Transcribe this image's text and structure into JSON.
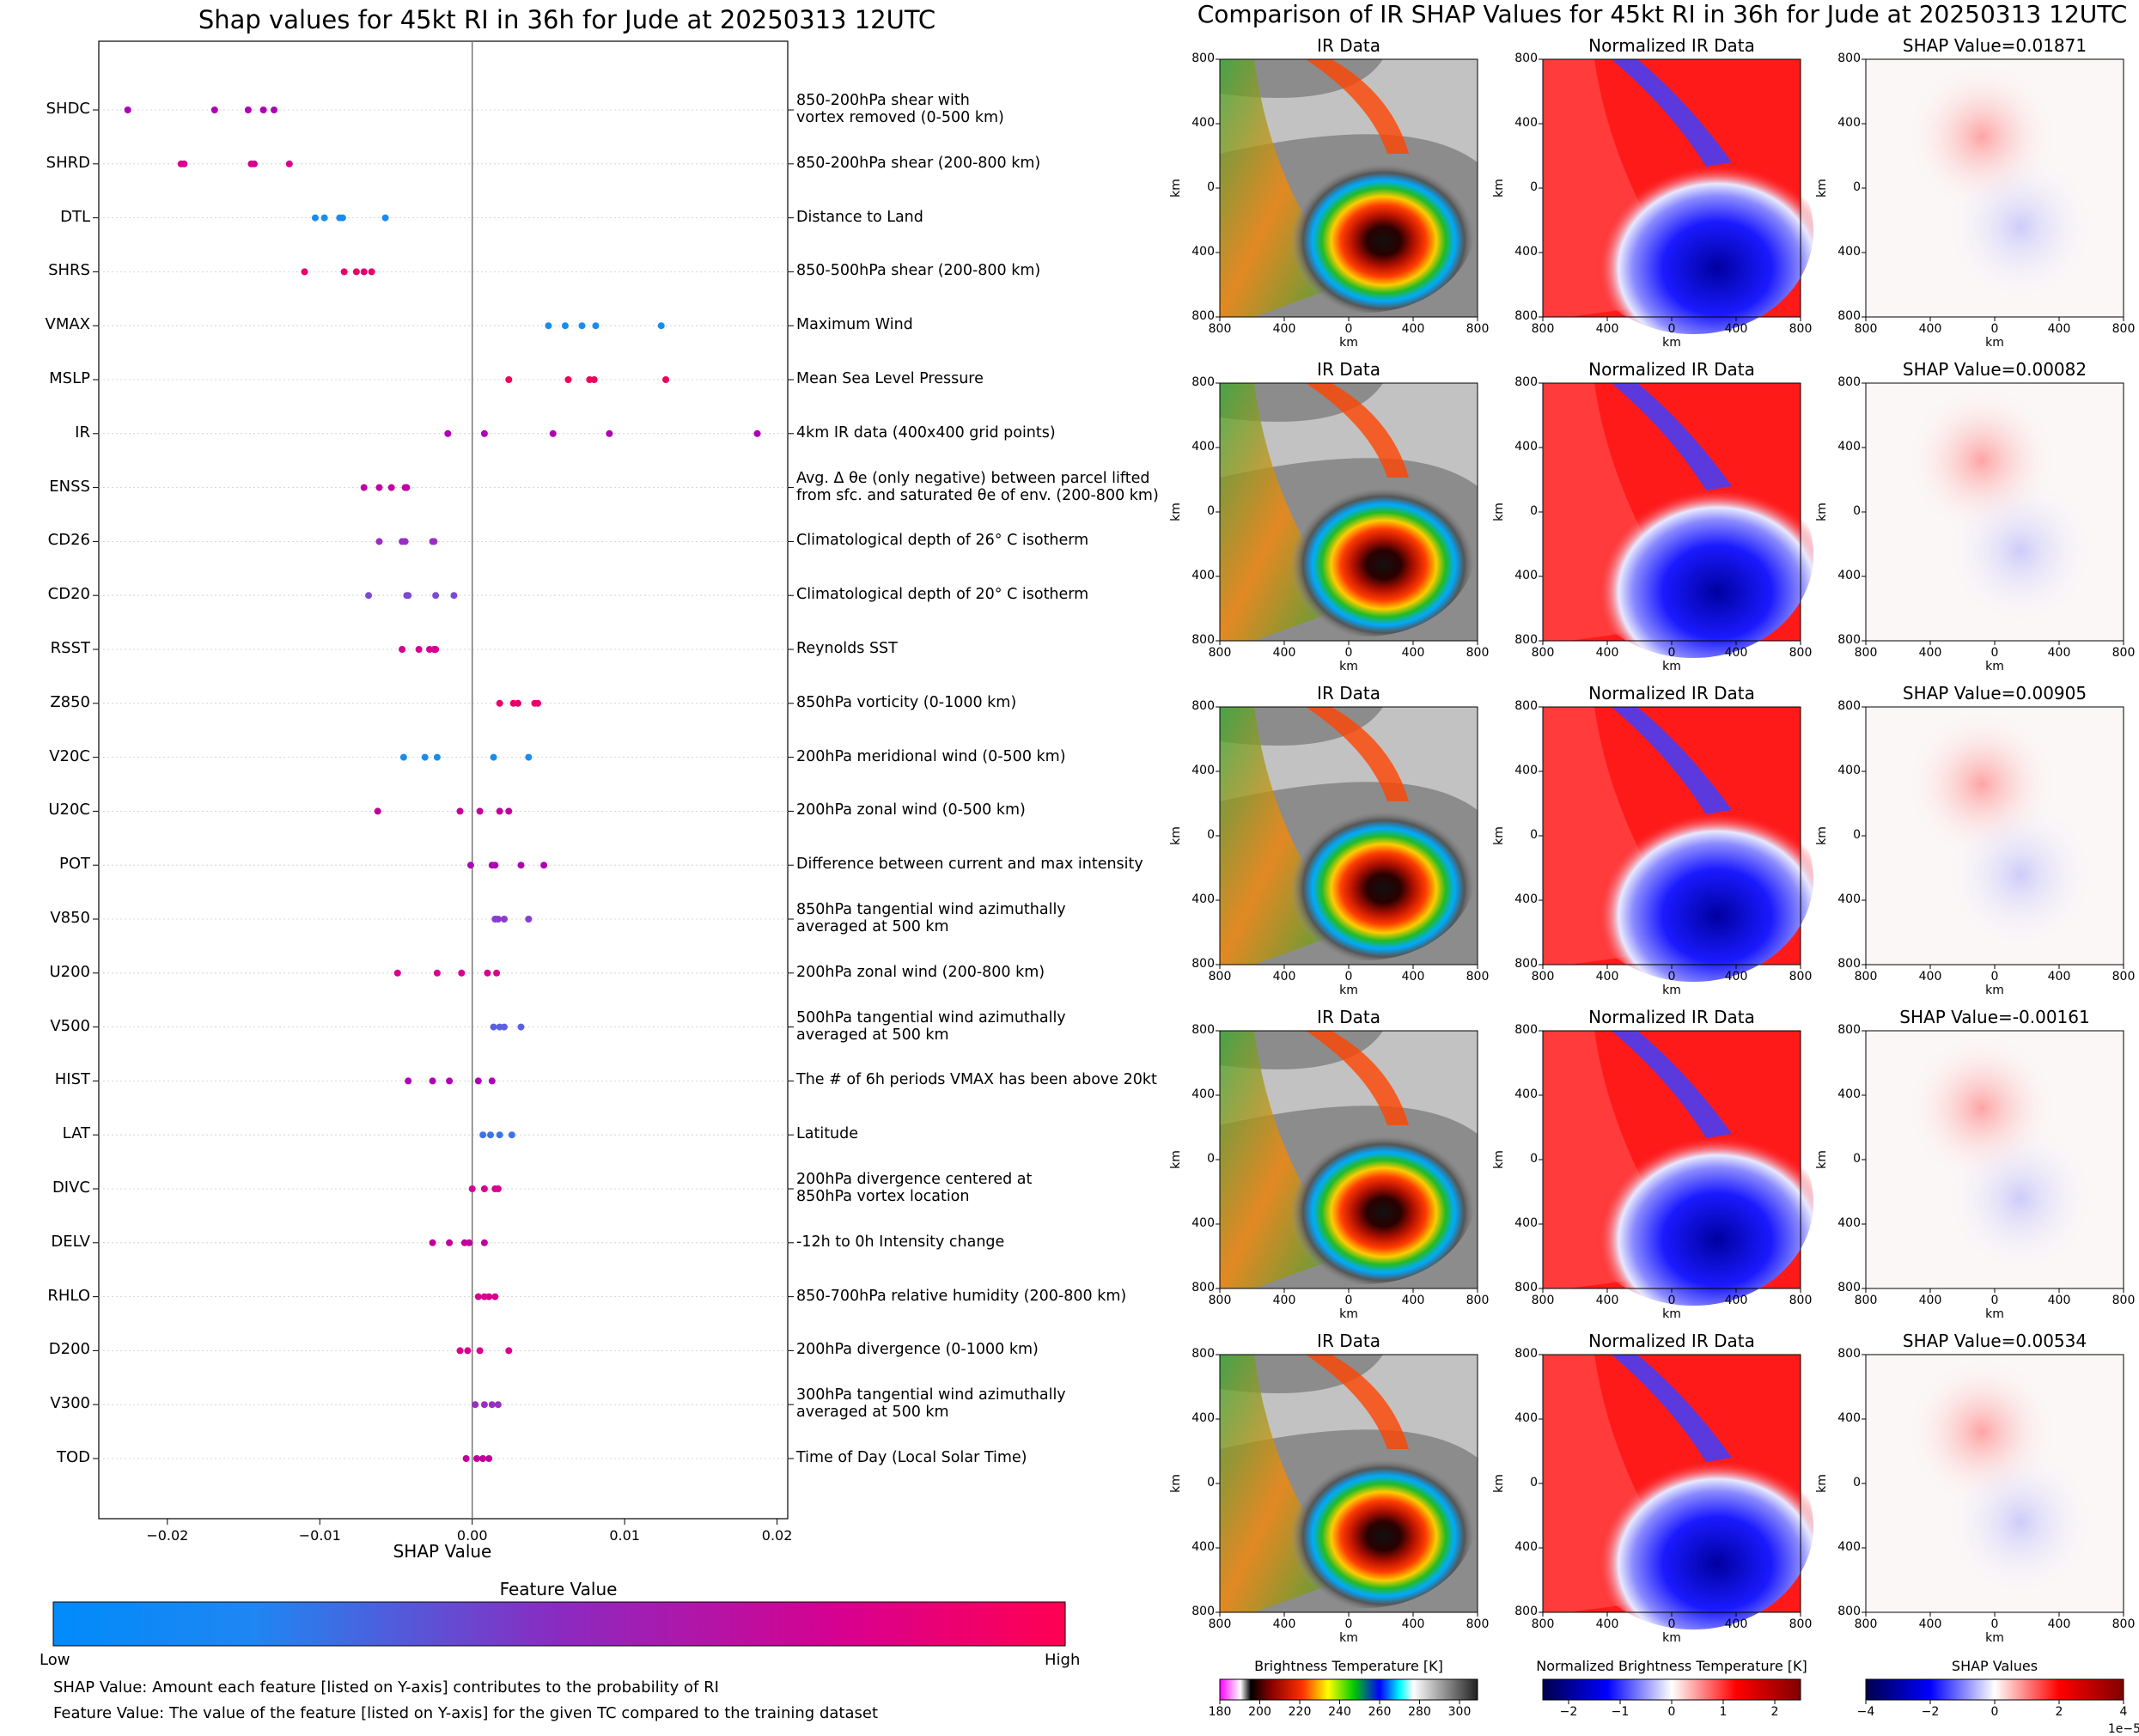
{
  "left_title": "Shap values for 45kt RI in 36h for Jude at 20250313 12UTC",
  "right_title": "Comparison of IR SHAP Values for 45kt RI in 36h for Jude at 20250313 12UTC",
  "chart_data": {
    "type": "scatter",
    "title": "Shap values for 45kt RI in 36h for Jude at 20250313 12UTC",
    "xlabel": "SHAP Value",
    "xlim": [
      -0.0245,
      0.0207
    ],
    "xticks": [
      -0.02,
      -0.01,
      0.0,
      0.01,
      0.02
    ],
    "xtick_labels": [
      "−0.02",
      "−0.01",
      "0.00",
      "0.01",
      "0.02"
    ],
    "features": [
      {
        "name": "SHDC",
        "desc": [
          "850-200hPa shear with",
          "vortex removed (0-500 km)"
        ],
        "values": [
          -0.0226,
          -0.0169,
          -0.0147,
          -0.0137,
          -0.013
        ],
        "color": "#b000b5"
      },
      {
        "name": "SHRD",
        "desc": [
          "850-200hPa shear (200-800 km)"
        ],
        "values": [
          -0.0191,
          -0.0189,
          -0.0145,
          -0.0143,
          -0.012
        ],
        "color": "#d8008f"
      },
      {
        "name": "DTL",
        "desc": [
          "Distance to Land"
        ],
        "values": [
          -0.0103,
          -0.0097,
          -0.0087,
          -0.0085,
          -0.0057
        ],
        "color": "#1a8cf0"
      },
      {
        "name": "SHRS",
        "desc": [
          "850-500hPa shear (200-800 km)"
        ],
        "values": [
          -0.011,
          -0.0084,
          -0.0076,
          -0.0071,
          -0.0066
        ],
        "color": "#e8006c"
      },
      {
        "name": "VMAX",
        "desc": [
          "Maximum Wind"
        ],
        "values": [
          0.005,
          0.0061,
          0.0072,
          0.0081,
          0.0124
        ],
        "color": "#1a8cf0"
      },
      {
        "name": "MSLP",
        "desc": [
          "Mean Sea Level Pressure"
        ],
        "values": [
          0.0024,
          0.0063,
          0.0077,
          0.008,
          0.0127
        ],
        "color": "#f0005a"
      },
      {
        "name": "IR",
        "desc": [
          "4km IR data (400x400 grid points)"
        ],
        "values": [
          -0.0016,
          0.0008,
          0.0053,
          0.009,
          0.0187
        ],
        "color": "#b000b5"
      },
      {
        "name": "ENSS",
        "desc": [
          "Avg. Δ θe (only negative) between parcel lifted",
          "from sfc. and saturated θe of env. (200-800 km)"
        ],
        "values": [
          -0.0071,
          -0.0061,
          -0.0053,
          -0.0044,
          -0.0043
        ],
        "color": "#c000a5"
      },
      {
        "name": "CD26",
        "desc": [
          "Climatological depth of 26° C isotherm"
        ],
        "values": [
          -0.0061,
          -0.0046,
          -0.0044,
          -0.0026,
          -0.0025
        ],
        "color": "#9a2ec0"
      },
      {
        "name": "CD20",
        "desc": [
          "Climatological depth of 20° C isotherm"
        ],
        "values": [
          -0.0068,
          -0.0043,
          -0.0042,
          -0.0024,
          -0.0012
        ],
        "color": "#7a4ad0"
      },
      {
        "name": "RSST",
        "desc": [
          "Reynolds SST"
        ],
        "values": [
          -0.0046,
          -0.0035,
          -0.0028,
          -0.0025,
          -0.0024
        ],
        "color": "#d8008f"
      },
      {
        "name": "Z850",
        "desc": [
          "850hPa vorticity (0-1000 km)"
        ],
        "values": [
          0.0018,
          0.0027,
          0.003,
          0.0041,
          0.0043
        ],
        "color": "#e8006c"
      },
      {
        "name": "V20C",
        "desc": [
          "200hPa meridional wind (0-500 km)"
        ],
        "values": [
          -0.0045,
          -0.0031,
          -0.0023,
          0.0014,
          0.0037
        ],
        "color": "#1a8cf0"
      },
      {
        "name": "U20C",
        "desc": [
          "200hPa zonal wind (0-500 km)"
        ],
        "values": [
          -0.0062,
          -0.0008,
          0.0005,
          0.0018,
          0.0024
        ],
        "color": "#c0009a"
      },
      {
        "name": "POT",
        "desc": [
          "Difference between current and max intensity"
        ],
        "values": [
          -0.0001,
          0.0013,
          0.0015,
          0.0032,
          0.0047
        ],
        "color": "#b000b5"
      },
      {
        "name": "V850",
        "desc": [
          "850hPa tangential wind azimuthally",
          "averaged at 500 km"
        ],
        "values": [
          0.0015,
          0.0017,
          0.0021,
          0.0037
        ],
        "color": "#8a3ccb"
      },
      {
        "name": "U200",
        "desc": [
          "200hPa zonal wind (200-800 km)"
        ],
        "values": [
          -0.0049,
          -0.0023,
          -0.0007,
          0.001,
          0.0016
        ],
        "color": "#d8008f"
      },
      {
        "name": "V500",
        "desc": [
          "500hPa tangential wind azimuthally",
          "averaged at 500 km"
        ],
        "values": [
          0.0014,
          0.0018,
          0.0021,
          0.0032
        ],
        "color": "#5b60e0"
      },
      {
        "name": "HIST",
        "desc": [
          "The # of 6h periods VMAX has been above 20kt"
        ],
        "values": [
          -0.0042,
          -0.0026,
          -0.0015,
          0.0004,
          0.0013
        ],
        "color": "#b000b5"
      },
      {
        "name": "LAT",
        "desc": [
          "Latitude"
        ],
        "values": [
          0.0007,
          0.0012,
          0.0018,
          0.0026
        ],
        "color": "#3a74e8"
      },
      {
        "name": "DIVC",
        "desc": [
          "200hPa divergence centered at",
          "850hPa vortex location"
        ],
        "values": [
          0.0,
          0.0008,
          0.0015,
          0.0017
        ],
        "color": "#d8008f"
      },
      {
        "name": "DELV",
        "desc": [
          "-12h to 0h Intensity change"
        ],
        "values": [
          -0.0026,
          -0.0015,
          -0.0005,
          -0.0002,
          0.0008
        ],
        "color": "#c0009a"
      },
      {
        "name": "RHLO",
        "desc": [
          "850-700hPa relative humidity (200-800 km)"
        ],
        "values": [
          0.0004,
          0.0008,
          0.0011,
          0.0015
        ],
        "color": "#d8008f"
      },
      {
        "name": "D200",
        "desc": [
          "200hPa divergence (0-1000 km)"
        ],
        "values": [
          -0.0008,
          -0.0003,
          0.0005,
          0.0024
        ],
        "color": "#d8008f"
      },
      {
        "name": "V300",
        "desc": [
          "300hPa tangential wind azimuthally",
          "averaged at 500 km"
        ],
        "values": [
          0.0002,
          0.0008,
          0.0013,
          0.0017
        ],
        "color": "#9a2ec0"
      },
      {
        "name": "TOD",
        "desc": [
          "Time of Day (Local Solar Time)"
        ],
        "values": [
          -0.0004,
          0.0003,
          0.0007,
          0.0011
        ],
        "color": "#c0009a"
      }
    ],
    "colorbar": {
      "title": "Feature Value",
      "low_label": "Low",
      "high_label": "High",
      "low_color": "#008bfb",
      "mid_color": "#8b2ac0",
      "high_color": "#ff0052"
    },
    "footnotes": [
      "SHAP Value: Amount each feature [listed on Y-axis] contributes to the probability of RI",
      "Feature Value: The value of the feature [listed on Y-axis] for the given TC compared to the training dataset"
    ]
  },
  "panels": {
    "col_titles": [
      "IR Data",
      "Normalized IR Data"
    ],
    "shap_titles": [
      "SHAP Value=0.01871",
      "SHAP Value=0.00082",
      "SHAP Value=0.00905",
      "SHAP Value=-0.00161",
      "SHAP Value=0.00534"
    ],
    "axis_label": "km",
    "tick_labels": [
      "800",
      "400",
      "0",
      "400",
      "800"
    ]
  },
  "colorbars": {
    "bt": {
      "label": "Brightness Temperature [K]",
      "ticks": [
        "180",
        "200",
        "220",
        "240",
        "260",
        "280",
        "300"
      ]
    },
    "norm": {
      "label": "Normalized Brightness Temperature [K]",
      "ticks": [
        "−2",
        "−1",
        "0",
        "1",
        "2"
      ]
    },
    "shap": {
      "label": "SHAP Values",
      "ticks": [
        "−4",
        "−2",
        "0",
        "2",
        "4"
      ],
      "exponent": "1e−5"
    }
  }
}
